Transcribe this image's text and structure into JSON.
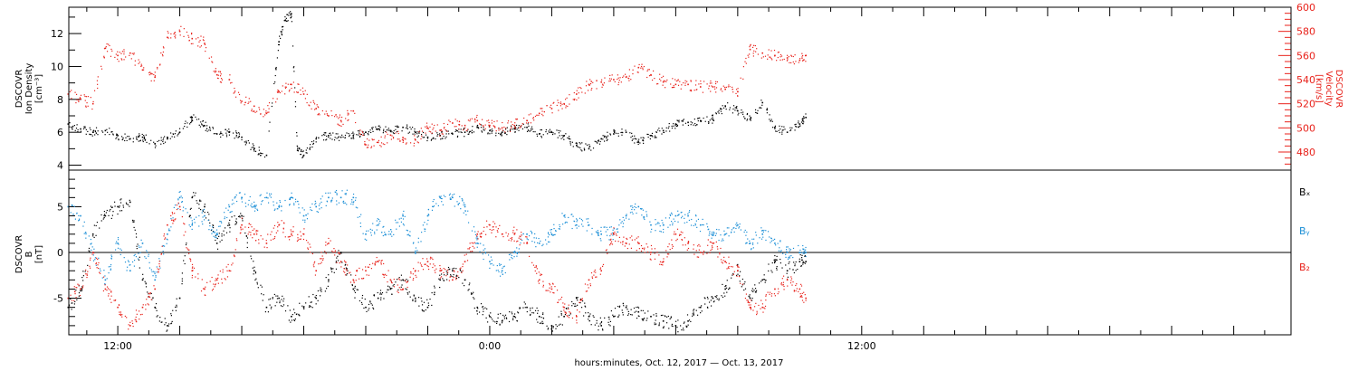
{
  "colors": {
    "black": "#000000",
    "red": "#e8221b",
    "blue": "#1a8ed6"
  },
  "xaxis": {
    "title": "hours:minutes, Oct. 12, 2017 — Oct. 13, 2017",
    "range_hours": [
      10.42,
      49.85
    ],
    "labeled_ticks": [
      {
        "h": 12,
        "label": "12:00"
      },
      {
        "h": 24,
        "label": "0:00"
      },
      {
        "h": 36,
        "label": "12:00"
      }
    ],
    "major_ticks_hours": [
      12,
      14,
      16,
      18,
      20,
      22,
      24,
      26,
      28,
      30,
      32,
      34,
      36,
      38,
      40,
      42,
      44,
      46,
      48
    ],
    "minor_ticks_hours": [
      11,
      13,
      15,
      17,
      19,
      21,
      23,
      25,
      27,
      29,
      31,
      33,
      35,
      37,
      39,
      41,
      43,
      45,
      47,
      49
    ]
  },
  "chart_data": [
    {
      "type": "scatter",
      "name": "density-velocity",
      "x_unit": "hours since Oct 12 00:00",
      "left_axis": {
        "label": [
          "DSCOVR",
          "Ion Density",
          "[cm⁻³]"
        ],
        "ylim": [
          3.7,
          13.6
        ],
        "ticks": [
          4,
          6,
          8,
          10,
          12
        ],
        "color": "#000000"
      },
      "right_axis": {
        "label": [
          "DSCOVR",
          "Velocity",
          "[km/s]"
        ],
        "ylim": [
          465,
          600
        ],
        "ticks": [
          480,
          500,
          520,
          540,
          560,
          580,
          600
        ],
        "color": "#e8221b"
      },
      "series": [
        {
          "axis": "left",
          "color": "#000000",
          "x": [
            10.4,
            10.8,
            11.2,
            11.6,
            12.0,
            12.4,
            12.8,
            13.2,
            13.6,
            14.0,
            14.4,
            14.8,
            15.2,
            15.6,
            16.0,
            16.4,
            16.8,
            17.2,
            17.4,
            17.6,
            17.8,
            18.0,
            18.4,
            18.8,
            19.2,
            19.6,
            20.0,
            20.4,
            20.8,
            21.2,
            21.6,
            22.0,
            22.4,
            22.8,
            23.2,
            23.6,
            24.0,
            24.4,
            24.8,
            25.2,
            25.6,
            26.0,
            26.4,
            26.8,
            27.2,
            27.6,
            28.0,
            28.4,
            28.8,
            29.2,
            29.6,
            30.0,
            30.4,
            30.8,
            31.2,
            31.6,
            32.0,
            32.4,
            32.8,
            33.2,
            33.6,
            34.0,
            34.2
          ],
          "y": [
            6.5,
            6.2,
            6.0,
            6.1,
            5.8,
            5.6,
            5.7,
            5.3,
            5.6,
            6.0,
            6.9,
            6.4,
            5.9,
            6.0,
            5.7,
            5.0,
            4.6,
            11.5,
            12.8,
            13.2,
            4.9,
            4.6,
            5.6,
            5.8,
            5.7,
            5.8,
            6.0,
            6.2,
            6.1,
            6.3,
            6.0,
            5.7,
            5.8,
            5.9,
            6.0,
            6.3,
            6.1,
            6.0,
            6.2,
            6.3,
            5.9,
            6.0,
            5.8,
            5.2,
            5.0,
            5.6,
            5.9,
            6.0,
            5.4,
            5.8,
            6.1,
            6.5,
            6.6,
            6.7,
            6.8,
            7.6,
            7.3,
            6.8,
            7.8,
            6.3,
            6.0,
            6.5,
            6.9
          ]
        },
        {
          "axis": "right",
          "color": "#e8221b",
          "x": [
            10.4,
            10.8,
            11.2,
            11.6,
            12.0,
            12.4,
            12.8,
            13.2,
            13.6,
            14.0,
            14.4,
            14.8,
            15.2,
            15.6,
            16.0,
            16.4,
            16.8,
            17.2,
            17.6,
            18.0,
            18.4,
            18.8,
            19.2,
            19.6,
            20.0,
            20.4,
            20.8,
            21.2,
            21.6,
            22.0,
            22.4,
            22.8,
            23.2,
            23.6,
            24.0,
            24.4,
            24.8,
            25.2,
            25.6,
            26.0,
            26.4,
            26.8,
            27.2,
            27.6,
            28.0,
            28.4,
            28.8,
            29.2,
            29.6,
            30.0,
            30.4,
            30.8,
            31.2,
            31.6,
            32.0,
            32.4,
            32.8,
            33.2,
            33.6,
            34.0,
            34.2
          ],
          "y": [
            528,
            524,
            520,
            566,
            560,
            562,
            548,
            542,
            575,
            580,
            574,
            570,
            544,
            540,
            522,
            518,
            512,
            530,
            536,
            528,
            516,
            510,
            506,
            514,
            486,
            488,
            494,
            492,
            490,
            500,
            498,
            504,
            502,
            506,
            502,
            500,
            502,
            506,
            512,
            516,
            520,
            528,
            536,
            538,
            540,
            542,
            550,
            544,
            538,
            536,
            536,
            534,
            534,
            532,
            530,
            565,
            562,
            560,
            558,
            556,
            560
          ]
        }
      ]
    },
    {
      "type": "scatter",
      "name": "magnetic-field",
      "x_unit": "hours since Oct 12 00:00",
      "left_axis": {
        "label": [
          "DSCOVR",
          "B",
          "[nT]"
        ],
        "ylim": [
          -9.0,
          9.0
        ],
        "ticks": [
          -5,
          0,
          5
        ],
        "color": "#000000"
      },
      "zero_line": 0,
      "legend": [
        "Bₓ",
        "Bᵧ",
        "B₂"
      ],
      "legend_colors": [
        "#000000",
        "#1a8ed6",
        "#e8221b"
      ],
      "series": [
        {
          "name": "Bx",
          "color": "#000000",
          "x": [
            10.4,
            10.8,
            11.2,
            11.6,
            12.0,
            12.4,
            12.8,
            13.2,
            13.6,
            14.0,
            14.4,
            14.8,
            15.2,
            15.6,
            16.0,
            16.4,
            16.8,
            17.2,
            17.6,
            18.0,
            18.4,
            18.8,
            19.2,
            19.6,
            20.0,
            20.4,
            20.8,
            21.2,
            21.6,
            22.0,
            22.4,
            22.8,
            23.2,
            23.6,
            24.0,
            24.4,
            24.8,
            25.2,
            25.6,
            26.0,
            26.4,
            26.8,
            27.2,
            27.6,
            28.0,
            28.4,
            28.8,
            29.2,
            29.6,
            30.0,
            30.4,
            30.8,
            31.2,
            31.6,
            32.0,
            32.4,
            32.8,
            33.2,
            33.6,
            34.0,
            34.2
          ],
          "y": [
            -6,
            -4,
            2,
            4,
            5,
            5.5,
            -3,
            -6,
            -8,
            -5,
            6,
            5,
            1,
            3,
            4,
            -2,
            -6,
            -5,
            -7,
            -6,
            -5,
            -3,
            0,
            -4,
            -6,
            -5,
            -4,
            -3,
            -5,
            -6,
            -3,
            -2,
            -3,
            -6,
            -7,
            -7.5,
            -7,
            -6,
            -7,
            -8,
            -7,
            -5,
            -7,
            -8,
            -7,
            -6,
            -6.5,
            -7,
            -7.5,
            -8,
            -7.5,
            -6,
            -5,
            -4,
            -2,
            -5,
            -3,
            -1,
            -2,
            -1,
            -1
          ]
        },
        {
          "name": "By",
          "color": "#1a8ed6",
          "x": [
            10.4,
            10.8,
            11.2,
            11.6,
            12.0,
            12.4,
            12.8,
            13.2,
            13.6,
            14.0,
            14.4,
            14.8,
            15.2,
            15.6,
            16.0,
            16.4,
            16.8,
            17.2,
            17.6,
            18.0,
            18.4,
            18.8,
            19.2,
            19.6,
            20.0,
            20.4,
            20.8,
            21.2,
            21.6,
            22.0,
            22.4,
            22.8,
            23.2,
            23.6,
            24.0,
            24.4,
            24.8,
            25.2,
            25.6,
            26.0,
            26.4,
            26.8,
            27.2,
            27.6,
            28.0,
            28.4,
            28.8,
            29.2,
            29.6,
            30.0,
            30.4,
            30.8,
            31.2,
            31.6,
            32.0,
            32.4,
            32.8,
            33.2,
            33.6,
            34.0,
            34.2
          ],
          "y": [
            5,
            4,
            0,
            -3,
            1,
            -2,
            1,
            -3,
            2,
            6,
            3,
            4,
            2,
            5,
            6,
            5,
            6,
            5,
            6,
            4,
            5,
            6,
            6,
            6,
            2,
            3,
            2,
            4,
            0,
            4,
            6,
            6,
            5,
            1,
            -1,
            -2,
            0,
            2,
            1,
            2,
            4,
            3,
            3,
            2,
            2,
            4,
            5,
            3,
            3,
            4,
            4,
            3,
            2,
            2,
            3,
            1,
            2,
            1,
            0,
            0,
            0
          ]
        },
        {
          "name": "Bz",
          "color": "#e8221b",
          "x": [
            10.4,
            10.8,
            11.2,
            11.6,
            12.0,
            12.4,
            12.8,
            13.2,
            13.6,
            14.0,
            14.4,
            14.8,
            15.2,
            15.6,
            16.0,
            16.4,
            16.8,
            17.2,
            17.6,
            18.0,
            18.4,
            18.8,
            19.2,
            19.6,
            20.0,
            20.4,
            20.8,
            21.2,
            21.6,
            22.0,
            22.4,
            22.8,
            23.2,
            23.6,
            24.0,
            24.4,
            24.8,
            25.2,
            25.6,
            26.0,
            26.4,
            26.8,
            27.2,
            27.6,
            28.0,
            28.4,
            28.8,
            29.2,
            29.6,
            30.0,
            30.4,
            30.8,
            31.2,
            31.6,
            32.0,
            32.4,
            32.8,
            33.2,
            33.6,
            34.0,
            34.2
          ],
          "y": [
            -5,
            -4,
            0,
            -4,
            -6,
            -8,
            -6,
            -4,
            3,
            5,
            -2,
            -4,
            -3,
            -2,
            3,
            2,
            1,
            3,
            2,
            2,
            -2,
            1,
            -1,
            -3,
            -2,
            -1,
            -3,
            -4,
            -2,
            -1,
            -2,
            -3,
            -1,
            2,
            3,
            2,
            2,
            1,
            -3,
            -4,
            -6,
            -7,
            -3,
            -2,
            2,
            1,
            1,
            0,
            -1,
            2,
            1,
            0,
            1,
            -1,
            -2,
            -6,
            -6,
            -4,
            -3,
            -4,
            -5
          ]
        }
      ]
    }
  ]
}
